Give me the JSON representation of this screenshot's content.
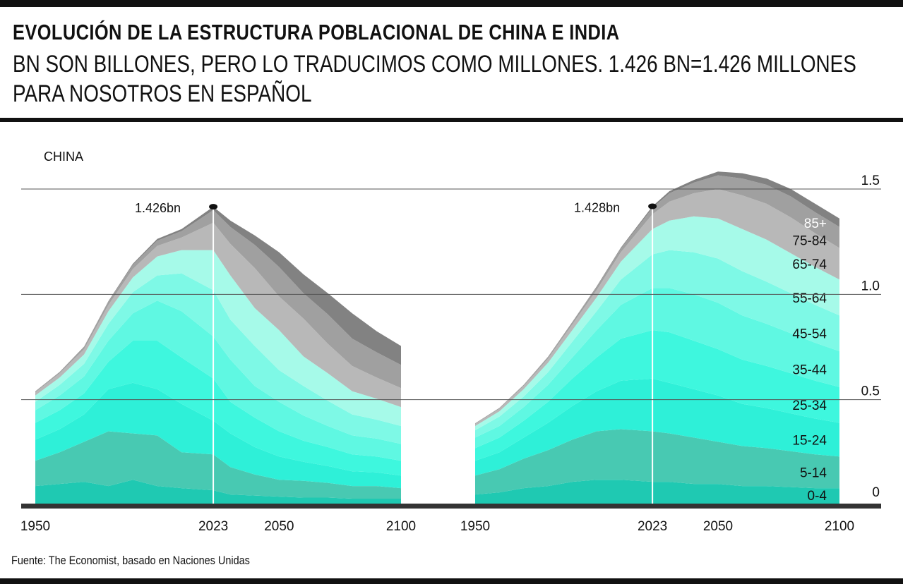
{
  "header": {
    "title": "EVOLUCIÓN DE LA ESTRUCTURA POBLACIONAL DE CHINA E INDIA",
    "subtitle_line1": "BN SON BILLONES, PERO LO TRADUCIMOS COMO MILLONES. 1.426 BN=1.426 MILLONES",
    "subtitle_line2": "PARA NOSOTROS EN ESPAÑOL"
  },
  "source": "Fuente: The Economist, basado en Naciones Unidas",
  "chart_data": [
    {
      "type": "area",
      "stacked": true,
      "panel_label": "CHINA",
      "x": [
        1950,
        1960,
        1970,
        1980,
        1990,
        2000,
        2010,
        2023,
        2030,
        2040,
        2050,
        2060,
        2070,
        2080,
        2090,
        2100
      ],
      "series": [
        {
          "name": "0-4",
          "color": "#1fc9b2",
          "values": [
            0.09,
            0.1,
            0.11,
            0.09,
            0.12,
            0.09,
            0.08,
            0.07,
            0.05,
            0.045,
            0.04,
            0.035,
            0.035,
            0.03,
            0.03,
            0.03
          ]
        },
        {
          "name": "5-14",
          "color": "#48c9b2",
          "values": [
            0.12,
            0.15,
            0.19,
            0.26,
            0.22,
            0.24,
            0.17,
            0.17,
            0.13,
            0.1,
            0.08,
            0.08,
            0.07,
            0.06,
            0.06,
            0.05
          ]
        },
        {
          "name": "15-24",
          "color": "#2ef0d8",
          "values": [
            0.1,
            0.11,
            0.13,
            0.2,
            0.24,
            0.22,
            0.23,
            0.16,
            0.16,
            0.13,
            0.11,
            0.09,
            0.08,
            0.07,
            0.065,
            0.06
          ]
        },
        {
          "name": "25-34",
          "color": "#3ef7de",
          "values": [
            0.08,
            0.09,
            0.1,
            0.13,
            0.2,
            0.23,
            0.22,
            0.2,
            0.15,
            0.14,
            0.12,
            0.1,
            0.09,
            0.08,
            0.075,
            0.07
          ]
        },
        {
          "name": "35-44",
          "color": "#5ff8e2",
          "values": [
            0.06,
            0.07,
            0.08,
            0.1,
            0.13,
            0.19,
            0.22,
            0.2,
            0.2,
            0.15,
            0.14,
            0.12,
            0.1,
            0.09,
            0.085,
            0.08
          ]
        },
        {
          "name": "45-54",
          "color": "#7ef9e6",
          "values": [
            0.04,
            0.05,
            0.06,
            0.08,
            0.1,
            0.12,
            0.18,
            0.22,
            0.19,
            0.19,
            0.15,
            0.14,
            0.12,
            0.1,
            0.09,
            0.085
          ]
        },
        {
          "name": "55-64",
          "color": "#a6fae9",
          "values": [
            0.03,
            0.035,
            0.045,
            0.06,
            0.07,
            0.09,
            0.11,
            0.19,
            0.21,
            0.18,
            0.19,
            0.14,
            0.13,
            0.11,
            0.1,
            0.09
          ]
        },
        {
          "name": "65-74",
          "color": "#b8b8b8",
          "values": [
            0.015,
            0.02,
            0.025,
            0.03,
            0.04,
            0.05,
            0.06,
            0.13,
            0.15,
            0.19,
            0.16,
            0.18,
            0.14,
            0.12,
            0.1,
            0.09
          ]
        },
        {
          "name": "75-84",
          "color": "#a0a0a0",
          "values": [
            0.005,
            0.007,
            0.01,
            0.015,
            0.02,
            0.025,
            0.03,
            0.06,
            0.08,
            0.11,
            0.14,
            0.12,
            0.14,
            0.13,
            0.12,
            0.11
          ]
        },
        {
          "name": "85+",
          "color": "#828282",
          "values": [
            0.0,
            0.0,
            0.002,
            0.003,
            0.005,
            0.008,
            0.01,
            0.016,
            0.03,
            0.045,
            0.07,
            0.09,
            0.1,
            0.12,
            0.1,
            0.09
          ]
        }
      ],
      "marker": {
        "x": 2023,
        "label": "1.426bn"
      },
      "x_ticks": [
        1950,
        2023,
        2050,
        2100
      ]
    },
    {
      "type": "area",
      "stacked": true,
      "panel_label": "",
      "x": [
        1950,
        1960,
        1970,
        1980,
        1990,
        2000,
        2010,
        2023,
        2030,
        2040,
        2050,
        2060,
        2070,
        2080,
        2090,
        2100
      ],
      "series": [
        {
          "name": "0-4",
          "color": "#1fc9b2",
          "values": [
            0.05,
            0.06,
            0.08,
            0.09,
            0.11,
            0.12,
            0.12,
            0.11,
            0.11,
            0.1,
            0.1,
            0.09,
            0.09,
            0.085,
            0.08,
            0.08
          ]
        },
        {
          "name": "5-14",
          "color": "#48c9b2",
          "values": [
            0.09,
            0.11,
            0.14,
            0.17,
            0.2,
            0.23,
            0.24,
            0.24,
            0.23,
            0.22,
            0.2,
            0.19,
            0.18,
            0.17,
            0.16,
            0.15
          ]
        },
        {
          "name": "15-24",
          "color": "#2ef0d8",
          "values": [
            0.07,
            0.08,
            0.1,
            0.13,
            0.16,
            0.19,
            0.23,
            0.25,
            0.24,
            0.23,
            0.22,
            0.2,
            0.19,
            0.18,
            0.17,
            0.16
          ]
        },
        {
          "name": "25-34",
          "color": "#3ef7de",
          "values": [
            0.06,
            0.07,
            0.08,
            0.1,
            0.13,
            0.16,
            0.2,
            0.23,
            0.24,
            0.23,
            0.22,
            0.21,
            0.2,
            0.19,
            0.18,
            0.17
          ]
        },
        {
          "name": "35-44",
          "color": "#5ff8e2",
          "values": [
            0.05,
            0.055,
            0.065,
            0.08,
            0.1,
            0.13,
            0.16,
            0.2,
            0.21,
            0.22,
            0.22,
            0.21,
            0.2,
            0.19,
            0.18,
            0.17
          ]
        },
        {
          "name": "45-54",
          "color": "#7ef9e6",
          "values": [
            0.035,
            0.045,
            0.05,
            0.06,
            0.075,
            0.09,
            0.12,
            0.16,
            0.18,
            0.2,
            0.21,
            0.21,
            0.2,
            0.19,
            0.18,
            0.17
          ]
        },
        {
          "name": "55-64",
          "color": "#a6fae9",
          "values": [
            0.02,
            0.025,
            0.035,
            0.045,
            0.055,
            0.065,
            0.085,
            0.12,
            0.14,
            0.17,
            0.19,
            0.2,
            0.2,
            0.19,
            0.18,
            0.17
          ]
        },
        {
          "name": "65-74",
          "color": "#b8b8b8",
          "values": [
            0.01,
            0.012,
            0.015,
            0.02,
            0.027,
            0.035,
            0.045,
            0.07,
            0.09,
            0.11,
            0.14,
            0.16,
            0.17,
            0.17,
            0.16,
            0.15
          ]
        },
        {
          "name": "75-84",
          "color": "#a0a0a0",
          "values": [
            0.003,
            0.004,
            0.005,
            0.008,
            0.01,
            0.014,
            0.018,
            0.03,
            0.04,
            0.05,
            0.065,
            0.08,
            0.09,
            0.1,
            0.1,
            0.1
          ]
        },
        {
          "name": "85+",
          "color": "#828282",
          "values": [
            0.0,
            0.0,
            0.001,
            0.001,
            0.002,
            0.003,
            0.004,
            0.008,
            0.01,
            0.013,
            0.018,
            0.025,
            0.03,
            0.035,
            0.04,
            0.04
          ]
        }
      ],
      "marker": {
        "x": 2023,
        "label": "1.428bn"
      },
      "x_ticks": [
        1950,
        2023,
        2050,
        2100
      ]
    }
  ],
  "y_axis": {
    "ylim": [
      0,
      1.5
    ],
    "ticks": [
      {
        "value": 0,
        "label": "0"
      },
      {
        "value": 0.5,
        "label": "0.5"
      },
      {
        "value": 1.0,
        "label": "1.0"
      },
      {
        "value": 1.5,
        "label": "1.5"
      }
    ]
  },
  "colors": {
    "baseline": "#333333",
    "gridline": "#555555",
    "marker_line": "#ffffff"
  }
}
